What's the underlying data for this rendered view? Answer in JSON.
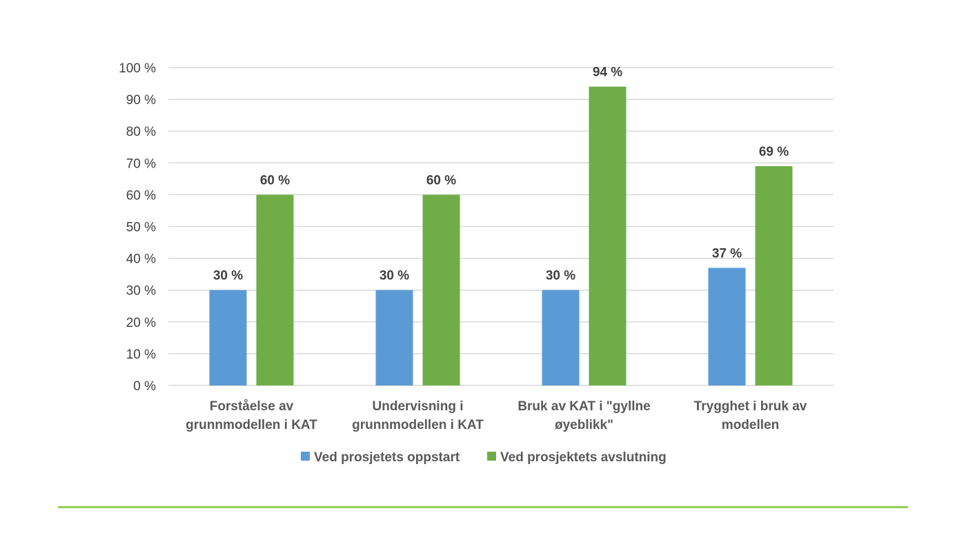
{
  "colors": {
    "series1": "#5b9bd5",
    "series2": "#70ad47",
    "grid": "#d9d9d9",
    "footer_rule": "#92d050"
  },
  "chart_data": {
    "type": "bar",
    "categories": [
      [
        "Forståelse av",
        "grunnmodellen i KAT"
      ],
      [
        "Undervisning i",
        "grunnmodellen i KAT"
      ],
      [
        "Bruk av KAT i \"gyllne",
        "øyeblikk\""
      ],
      [
        "Trygghet i bruk av",
        "modellen"
      ]
    ],
    "series": [
      {
        "name": "Ved prosjetets oppstart",
        "values": [
          30,
          30,
          30,
          37
        ],
        "labels": [
          "30 %",
          "30 %",
          "30 %",
          "37 %"
        ]
      },
      {
        "name": "Ved prosjektets avslutning",
        "values": [
          60,
          60,
          94,
          69
        ],
        "labels": [
          "60 %",
          "60 %",
          "94 %",
          "69 %"
        ]
      }
    ],
    "yticks": [
      "0 %",
      "10 %",
      "20 %",
      "30 %",
      "40 %",
      "50 %",
      "60 %",
      "70 %",
      "80 %",
      "90 %",
      "100 %"
    ],
    "ylim": [
      0,
      100
    ],
    "grid": true,
    "legend": "bottom",
    "title": "",
    "xlabel": "",
    "ylabel": ""
  }
}
